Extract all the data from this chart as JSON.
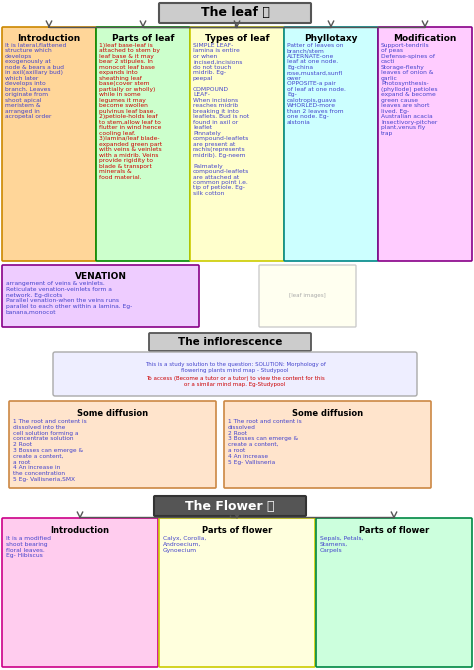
{
  "bg_color": "#ffffff",
  "leaf_title": "The leaf",
  "leaf_title_bg": "#cccccc",
  "leaf_title_border": "#555555",
  "box_colors_bg": [
    "#ffd699",
    "#ccffcc",
    "#ffffcc",
    "#ccffff",
    "#ffccff"
  ],
  "box_colors_border": [
    "#cc8800",
    "#008800",
    "#cccc00",
    "#008888",
    "#880088"
  ],
  "box_titles": [
    "Introduction",
    "Parts of leaf",
    "Types of leaf",
    "Phyllotaxy",
    "Modification"
  ],
  "box_texts": [
    "It is lateral,flattened\nstructure which\ndevelops\nexogenously at\nnode & bears a bud\nin axil(axillary bud)\nwhich later\ndevelops into\nbranch. Leaves\noriginate from\nshoot apical\nmeristem &\narranged in\nacropetal order",
    "1)leaf base-leaf is\nattached to stem by\nleaf base & it may\nbear 2 stipules. In\nmonocot leaf base\nexpands into\nsheathing leaf\nbase(cover stem\npartially or wholly)\nwhile in some\nlegumes it may\nbecome swollen\npulvinus leaf base.\n2)petiole-holds leaf\nto stem,allow leaf to\nflutter in wind hence\ncooling leaf.\n3)lamina/leaf blade-\nexpanded green part\nwith veins & veinlets\nwith a midrib. Veins\nprovide rigidity to\nblade & transport\nminerals &\nfood material.",
    "SIMPLE LEAF-\nlamina is entire\nor when\nincised,incisions\ndo not touch\nmidrib. Eg-\npeepal\n\nCOMPOUND\nLEAF-\nWhen incisions\nreaches midrib\nbreaking it into\nleaflets. Bud is not\nfound in axil or\nleaflet\nPinnately\ncompound-leaflets\nare present at\nrachis(represents\nmidrib). Eg-neem\n\nPalmately\ncompound-leaflets\nare attached at\ncommon point i.e.\ntip of petiole. Eg-\nsilk cotton",
    "Patter of leaves on\nbranch/stem\nALTERNATE-one\nleaf at one node.\nEg-china\nrose,mustard,sunfl\nower\nOPPOSITE-a pair\nof leaf at one node.\nEg-\ncalotropis,guava\nWHORLED-more\nthan 2 leaves from\none node. Eg-\nalstonia",
    "Support-tendrils\nof peas\nDefense-spines of\ncacti\nStorage-fleshy\nleaves of onion &\ngarlic\nPhotosynthesis-\n(phyllode) petioles\nexpand & become\ngreen cause\nleaves are short\nlived. Eg-\nAustralian acacia\nInsectivory-pitcher\nplant,venus fly\ntrap"
  ],
  "box_text_colors": [
    "#4444cc",
    "#cc0000",
    "#4444cc",
    "#4444cc",
    "#4444cc"
  ],
  "venation_title": "VENATION",
  "venation_bg": "#eeccff",
  "venation_border": "#880088",
  "venation_text": "arrangement of veins & veinlets.\nReticulate venation-veinlets form a\nnetwork. Eg-dicots\nParallel venation-when the veins runs\nparallel to each other within a lamina. Eg-\nbanana,monocot",
  "venation_text_color": "#4444cc",
  "inflorescence_title": "The inflorescence",
  "inflorescence_bg": "#cccccc",
  "inflorescence_border": "#555555",
  "studypool_line1": "This is a study solution to the question: SOLUTION: Morphology of",
  "studypool_line2": "flowering plants mind map - Studypool",
  "studypool_line3": "To access (Become a tutor or a tutor) to view the content for this",
  "studypool_line4": "or a similar mind map. Eg-Studypool",
  "studypool_bg": "#eeeeff",
  "studypool_border": "#aaaaaa",
  "studypool_color1": "#4444cc",
  "studypool_color2": "#cc0000",
  "stem_box1_title": "Some diffusion",
  "stem_box2_title": "Some diffusion",
  "stem_box_bg": "#ffe4cc",
  "stem_box_border": "#cc8844",
  "stem_box_text_color": "#4444cc",
  "stem_box1_text": "1 The root and content is\ndissolved into the\ncell solution forming a\nconcentrate solution\n2 Root\n3 Bosses can emerge &\ncreate a content,\na root\n4 An increase in\nthe concentration\n5 Eg- Vallisneria,SMX",
  "stem_box2_text": "1 The root and content is\ndissolved\n2 Root\n3 Bosses can emerge &\ncreate a content,\na root\n4 An increase\n5 Eg- Vallisneria",
  "flower_title": "The Flower",
  "flower_title_bg": "#555555",
  "flower_title_text_color": "#ffffff",
  "flower_title_border": "#333333",
  "flower_box_colors_bg": [
    "#ffccee",
    "#ffffdd",
    "#ccffdd"
  ],
  "flower_box_colors_border": [
    "#cc0088",
    "#cccc00",
    "#008844"
  ],
  "flower_box_titles": [
    "Introduction",
    "Parts of flower",
    "Parts of flower"
  ],
  "flower_box_text_colors": [
    "#4444cc",
    "#4444cc",
    "#4444cc"
  ],
  "flower_box_texts": [
    "It is a modified\nshoot bearing\nfloral leaves.\nEg- Hibiscus",
    "Calyx, Corolla,\nAndroecium,\nGynoecium",
    "Sepals, Petals,\nStamens,\nCarpels"
  ],
  "arrow_color": "#555555",
  "line_color": "#555555"
}
